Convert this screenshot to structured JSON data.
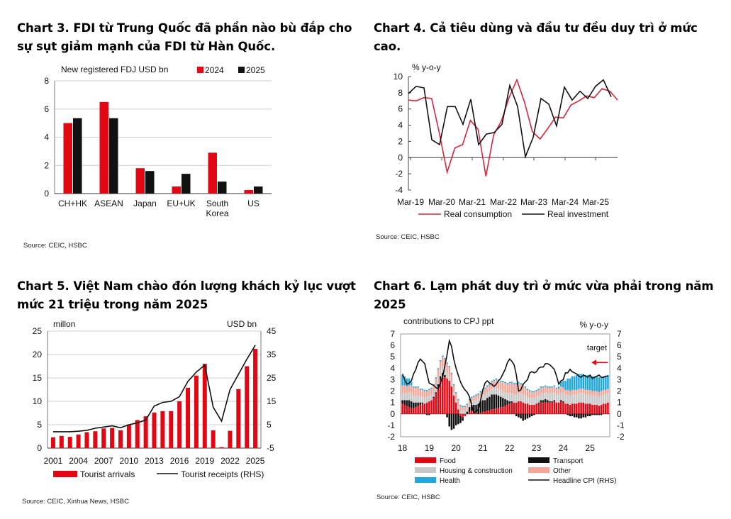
{
  "colors": {
    "red": "#e30613",
    "black": "#111111",
    "grid": "#cfcfcf",
    "gray": "#c8c8c8",
    "salmon": "#f4a798",
    "cyan": "#1fa8dc"
  },
  "chart3": {
    "title_lines": [
      "Chart 3. FDI từ Trung Quốc đã phần nào bù đắp cho",
      "sự sụt giảm mạnh của FDI từ Hàn Quốc."
    ],
    "source": "Source: CEIC, HSBC"
  },
  "chart4": {
    "title_lines": [
      "Chart 4.  Cả tiêu dùng và đầu tư đều duy trì ở mức",
      "cao."
    ],
    "source": "Source: CEIC, HSBC"
  },
  "chart5": {
    "title_lines": [
      "Chart 5. Việt Nam chào đón lượng khách kỷ lục vượt",
      "mức 21 triệu trong năm 2025"
    ],
    "source": "Source: CEIC, Xinhua News, HSBC"
  },
  "chart6": {
    "title_lines": [
      "Chart 6. Lạm phát duy trì ở mức vừa phải trong năm",
      "2025"
    ],
    "source": "Source: CEIC, HSBC"
  },
  "chart_data": [
    {
      "id": "fdi",
      "type": "bar",
      "ylabel": "New  registered FDJ USD bn",
      "categories": [
        "CH+HK",
        "ASEAN",
        "Japan",
        "EU+UK",
        "South\nKorea",
        "US"
      ],
      "series": [
        {
          "name": "2024",
          "color": "#e30613",
          "values": [
            5.0,
            6.5,
            1.8,
            0.5,
            2.9,
            0.25
          ]
        },
        {
          "name": "2025",
          "color": "#111111",
          "values": [
            5.35,
            5.35,
            1.6,
            1.4,
            0.85,
            0.5
          ]
        }
      ],
      "ylim": [
        0,
        8
      ],
      "yticks": [
        0,
        2,
        4,
        6,
        8
      ]
    },
    {
      "id": "growth",
      "type": "line",
      "ylabel": "% y-o-y",
      "ylim": [
        -4,
        10
      ],
      "yticks": [
        -4,
        -2,
        0,
        2,
        4,
        6,
        8,
        10
      ],
      "xlabels": [
        "Mar-19",
        "Mar-20",
        "Mar-21",
        "Mar-22",
        "Mar-23",
        "Mar-24",
        "Mar-25"
      ],
      "series": [
        {
          "name": "Real consumption",
          "color": "#d7263d",
          "values": [
            7.1,
            7.0,
            7.4,
            7.3,
            3.0,
            -1.8,
            1.2,
            1.6,
            4.6,
            3.5,
            -2.3,
            2.8,
            4.5,
            7.4,
            9.6,
            6.8,
            3.2,
            2.3,
            3.6,
            5.0,
            4.9,
            6.5,
            7.0,
            7.6,
            7.4,
            8.5,
            8.2,
            7.1
          ]
        },
        {
          "name": "Real investment",
          "color": "#111111",
          "values": [
            7.9,
            8.8,
            8.6,
            2.2,
            1.6,
            6.3,
            6.3,
            4.1,
            7.2,
            1.6,
            2.9,
            3.1,
            4.1,
            8.9,
            6.3,
            0.1,
            2.5,
            7.3,
            6.6,
            3.9,
            8.7,
            7.1,
            8.2,
            7.3,
            8.8,
            9.6,
            7.5
          ]
        }
      ]
    },
    {
      "id": "tourism",
      "type": "bar+line",
      "left_unit": "millon",
      "right_unit": "USD bn",
      "ylim_left": [
        0,
        25
      ],
      "yticks_left": [
        0,
        5,
        10,
        15,
        20,
        25
      ],
      "ylim_right": [
        -5,
        45
      ],
      "yticks_right": [
        -5,
        5,
        15,
        25,
        35,
        45
      ],
      "xlabels": [
        "2001",
        "2004",
        "2007",
        "2010",
        "2013",
        "2016",
        "2019",
        "2022",
        "2025"
      ],
      "years": [
        2001,
        2002,
        2003,
        2004,
        2005,
        2006,
        2007,
        2008,
        2009,
        2010,
        2011,
        2012,
        2013,
        2014,
        2015,
        2016,
        2017,
        2018,
        2019,
        2020,
        2021,
        2022,
        2023,
        2024,
        2025
      ],
      "series": [
        {
          "name": "Tourist arrivals",
          "color": "#e30613",
          "axis": "left",
          "values": [
            2.3,
            2.6,
            2.4,
            2.9,
            3.4,
            3.6,
            4.2,
            4.3,
            3.8,
            5.0,
            6.0,
            6.8,
            7.6,
            7.9,
            7.9,
            10.0,
            12.9,
            15.5,
            18.0,
            3.8,
            0.2,
            3.7,
            12.6,
            17.5,
            21.2
          ]
        },
        {
          "name": "Tourist receipts (RHS)",
          "color": "#111111",
          "axis": "right",
          "values": [
            2.0,
            2.0,
            2.0,
            2.2,
            2.6,
            3.5,
            4.0,
            4.5,
            3.7,
            5.0,
            5.8,
            7.0,
            13.0,
            14.5,
            15.0,
            17.0,
            23.5,
            27.5,
            30.5,
            12.5,
            6.5,
            20.0,
            26.5,
            33.0,
            39.0
          ]
        }
      ]
    },
    {
      "id": "cpi",
      "type": "stacked_bar+line",
      "left_label": "contributions to CPJ ppt",
      "right_label": "% y-o-y",
      "ylim": [
        -2,
        7
      ],
      "yticks": [
        -2,
        -1,
        0,
        1,
        2,
        3,
        4,
        5,
        6,
        7
      ],
      "xlabels": [
        "18",
        "19",
        "20",
        "21",
        "22",
        "23",
        "24",
        "25"
      ],
      "target_label": "target",
      "target_value": 4.5,
      "series_names": [
        "Food",
        "Transport",
        "Housing & construction",
        "Other",
        "Health",
        "Headline CPI (RHS)"
      ],
      "food": [
        0.9,
        0.8,
        0.7,
        0.6,
        0.5,
        0.5,
        0.6,
        0.7,
        0.8,
        0.9,
        0.9,
        1.0,
        1.1,
        1.2,
        1.4,
        1.8,
        2.4,
        3.0,
        3.3,
        3.2,
        3.1,
        2.9,
        2.4,
        1.6,
        1.0,
        0.4,
        -0.2,
        -0.3,
        -0.2,
        0.0,
        0.2,
        0.3,
        0.2,
        0.1,
        0.0,
        0.1,
        0.2,
        0.2,
        0.3,
        0.3,
        0.4,
        0.4,
        0.5,
        0.5,
        0.6,
        0.6,
        0.7,
        0.8,
        0.9,
        1.0,
        1.0,
        1.0,
        1.1,
        1.1,
        1.0,
        0.9,
        0.9,
        0.8,
        0.8,
        0.8,
        0.9,
        0.9,
        1.0,
        1.0,
        1.0,
        1.0,
        1.0,
        1.0,
        1.1,
        1.0,
        1.0,
        1.1,
        1.0,
        0.9,
        0.9,
        0.8,
        0.9,
        0.9,
        0.9,
        1.0,
        1.0,
        1.0,
        0.9,
        0.9,
        0.9,
        0.8,
        0.8,
        0.8,
        0.7,
        0.8,
        0.9,
        0.9,
        1.0
      ],
      "transport": [
        0.3,
        0.4,
        0.5,
        0.6,
        0.6,
        0.5,
        0.4,
        0.3,
        0.2,
        0.1,
        0.0,
        -0.1,
        -0.1,
        0.0,
        0.1,
        0.1,
        0.2,
        0.3,
        0.3,
        0.2,
        -0.3,
        -1.1,
        -1.4,
        -1.3,
        -1.0,
        -0.9,
        -0.6,
        -0.3,
        0.0,
        0.2,
        0.4,
        0.5,
        0.6,
        0.7,
        0.9,
        1.0,
        1.0,
        1.0,
        1.1,
        1.2,
        1.3,
        1.3,
        1.2,
        1.1,
        0.9,
        0.8,
        0.6,
        0.4,
        0.2,
        0.1,
        0.0,
        -0.2,
        -0.3,
        -0.4,
        -0.6,
        -0.5,
        -0.4,
        -0.3,
        -0.2,
        -0.1,
        0.0,
        0.1,
        0.2,
        0.2,
        0.3,
        0.2,
        0.1,
        0.1,
        0.1,
        0.0,
        0.0,
        0.1,
        0.1,
        0.0,
        -0.1,
        -0.2,
        -0.2,
        -0.3,
        -0.3,
        -0.4,
        -0.4,
        -0.3,
        -0.3,
        -0.2,
        -0.2,
        -0.1,
        -0.1,
        -0.1,
        -0.1,
        -0.1,
        0.0,
        0.0,
        0.0
      ],
      "housing": [
        0.6,
        0.6,
        0.6,
        0.7,
        0.7,
        0.6,
        0.6,
        0.6,
        0.5,
        0.5,
        0.5,
        0.5,
        0.5,
        0.5,
        0.5,
        0.6,
        0.6,
        0.6,
        0.6,
        0.6,
        0.5,
        0.4,
        0.4,
        0.3,
        0.3,
        0.3,
        0.3,
        0.3,
        0.3,
        0.3,
        0.3,
        0.3,
        0.4,
        0.4,
        0.4,
        0.4,
        0.5,
        0.5,
        0.5,
        0.5,
        0.5,
        0.6,
        0.6,
        0.6,
        0.6,
        0.6,
        0.6,
        0.6,
        0.7,
        0.7,
        0.7,
        0.7,
        0.7,
        0.7,
        0.7,
        0.7,
        0.6,
        0.6,
        0.6,
        0.6,
        0.6,
        0.6,
        0.6,
        0.6,
        0.6,
        0.6,
        0.7,
        0.7,
        0.7,
        0.7,
        0.7,
        0.7,
        0.7,
        0.8,
        0.8,
        0.8,
        0.8,
        0.8,
        0.8,
        0.8,
        0.8,
        0.8,
        0.8,
        0.8,
        0.8,
        0.8,
        0.8,
        0.8,
        0.8,
        0.8,
        0.8,
        0.8,
        0.8
      ],
      "other": [
        0.7,
        0.7,
        0.6,
        0.6,
        0.7,
        0.7,
        0.7,
        0.7,
        0.6,
        0.6,
        0.6,
        0.5,
        0.5,
        0.5,
        0.5,
        0.6,
        0.7,
        0.7,
        0.8,
        0.8,
        0.8,
        0.8,
        0.7,
        0.6,
        0.5,
        0.5,
        0.4,
        0.3,
        0.3,
        0.3,
        0.3,
        0.3,
        0.3,
        0.4,
        0.4,
        0.4,
        0.4,
        0.5,
        0.5,
        0.5,
        0.6,
        0.6,
        0.7,
        0.7,
        0.7,
        0.8,
        0.8,
        0.8,
        0.9,
        0.9,
        0.9,
        0.9,
        0.9,
        0.8,
        0.8,
        0.7,
        0.6,
        0.6,
        0.5,
        0.5,
        0.5,
        0.5,
        0.5,
        0.5,
        0.5,
        0.5,
        0.5,
        0.5,
        0.5,
        0.5,
        0.5,
        0.5,
        0.5,
        0.4,
        0.4,
        0.4,
        0.4,
        0.4,
        0.4,
        0.4,
        0.4,
        0.4,
        0.4,
        0.4,
        0.4,
        0.4,
        0.4,
        0.4,
        0.4,
        0.4,
        0.4,
        0.4,
        0.4
      ],
      "health": [
        0.9,
        0.8,
        0.7,
        0.6,
        0.3,
        0.1,
        0.1,
        0.1,
        0.1,
        0.1,
        0.1,
        0.1,
        0.1,
        0.1,
        0.1,
        0.1,
        0.1,
        0.1,
        0.1,
        0.1,
        0.1,
        0.1,
        0.1,
        0.1,
        0.1,
        0.1,
        0.1,
        0.1,
        0.1,
        0.1,
        0.1,
        0.1,
        0.1,
        0.1,
        0.1,
        0.1,
        0.1,
        0.1,
        0.1,
        0.1,
        0.1,
        0.1,
        0.1,
        0.1,
        0.1,
        0.1,
        0.1,
        0.1,
        0.1,
        0.1,
        0.1,
        0.1,
        0.1,
        0.1,
        0.1,
        0.1,
        0.1,
        0.1,
        0.1,
        0.1,
        0.1,
        0.1,
        0.1,
        0.1,
        0.1,
        0.1,
        0.1,
        0.1,
        0.1,
        0.1,
        0.2,
        0.4,
        0.6,
        0.8,
        1.0,
        1.1,
        1.2,
        1.2,
        1.3,
        1.3,
        1.3,
        1.3,
        1.3,
        1.3,
        1.3,
        1.3,
        1.3,
        1.3,
        1.3,
        1.2,
        1.2,
        1.2,
        1.2
      ],
      "headline": [
        3.5,
        3.0,
        2.6,
        2.7,
        2.9,
        3.5,
        3.9,
        4.5,
        4.8,
        4.6,
        4.4,
        3.5,
        2.7,
        2.6,
        2.5,
        2.3,
        2.2,
        2.7,
        3.2,
        4.2,
        5.2,
        6.4,
        5.9,
        4.8,
        4.0,
        3.4,
        2.8,
        2.4,
        2.1,
        1.9,
        1.5,
        0.8,
        0.1,
        0.2,
        0.4,
        1.2,
        2.1,
        2.7,
        2.9,
        2.7,
        2.6,
        2.4,
        2.6,
        2.9,
        3.1,
        3.5,
        3.9,
        4.5,
        4.8,
        4.6,
        4.3,
        3.4,
        2.0,
        2.1,
        2.6,
        2.8,
        3.0,
        3.6,
        3.7,
        3.6,
        3.7,
        4.0,
        4.1,
        4.1,
        4.4,
        4.4,
        4.3,
        4.1,
        3.9,
        3.3,
        2.6,
        2.9,
        3.0,
        3.6,
        3.6,
        3.9,
        3.7,
        3.6,
        3.5,
        3.3,
        3.2,
        3.4,
        3.3,
        3.2,
        3.4,
        3.1,
        3.2,
        3.3,
        3.4,
        3.2,
        3.2,
        3.3,
        3.3
      ]
    }
  ]
}
